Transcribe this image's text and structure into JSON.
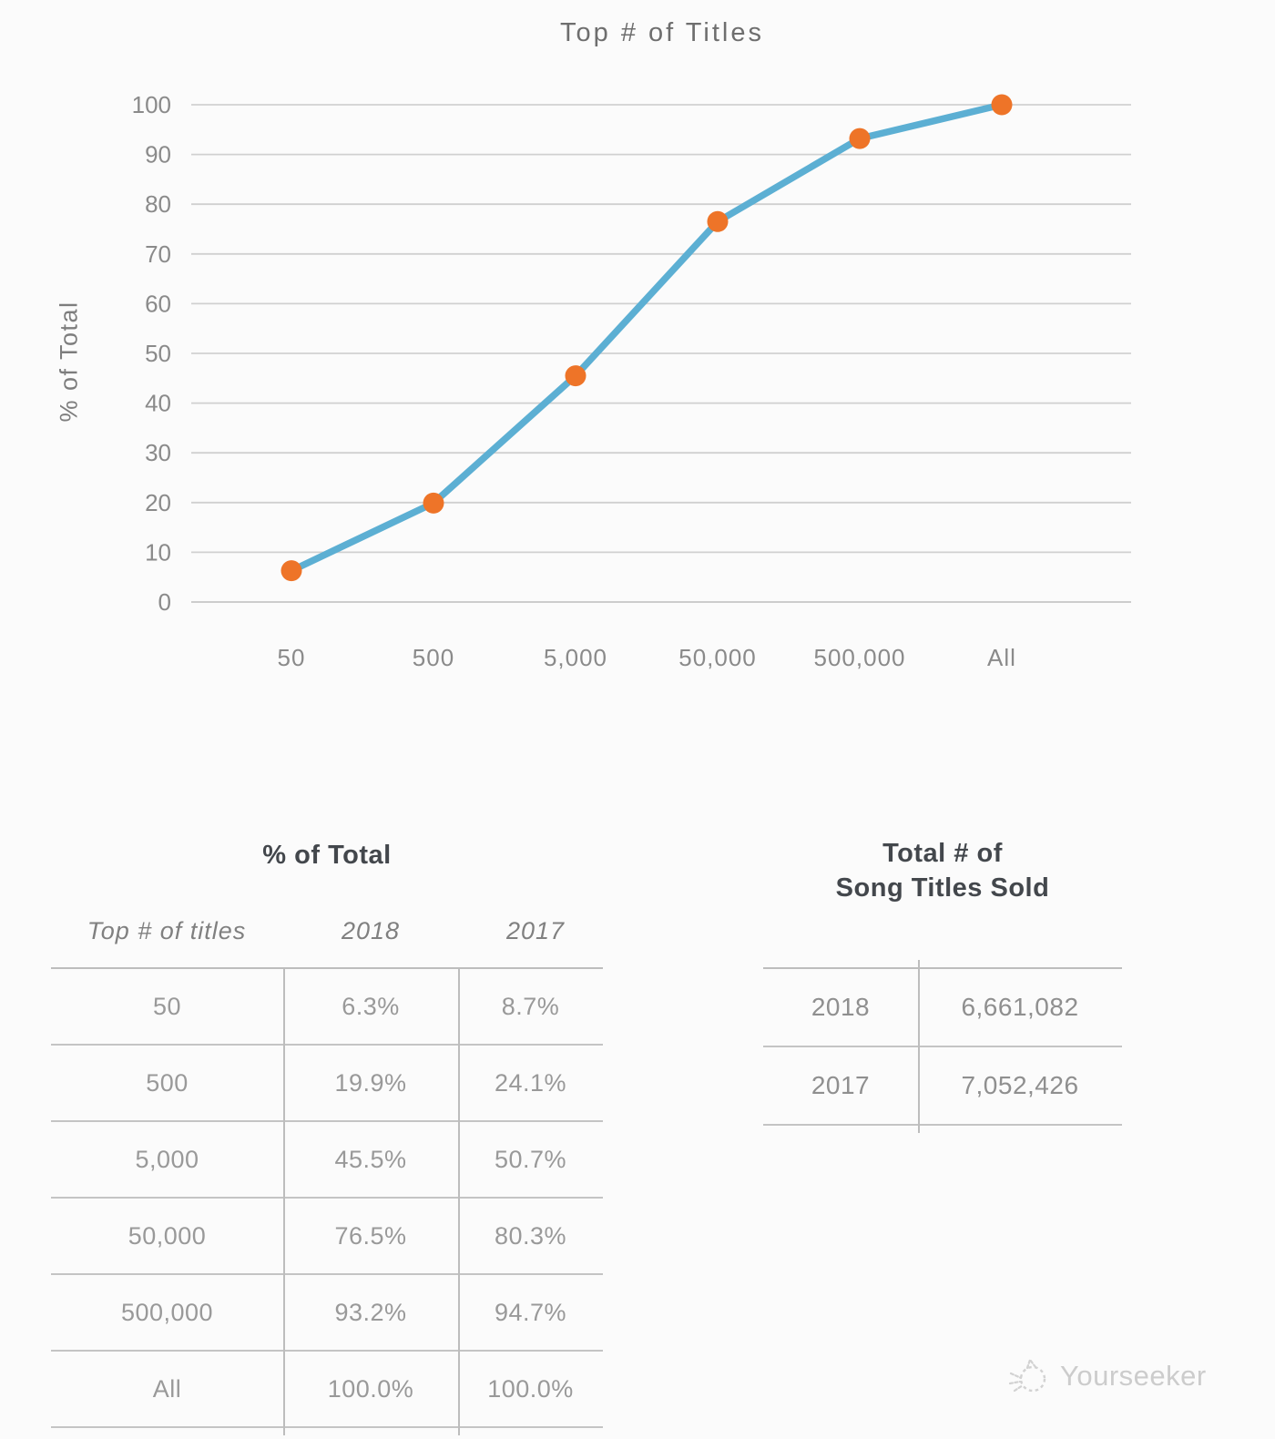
{
  "chart": {
    "title": "Top # of Titles",
    "ylabel": "% of Total"
  },
  "chart_data": {
    "type": "line",
    "title": "Top # of Titles",
    "xlabel": "",
    "ylabel": "% of Total",
    "categories": [
      "50",
      "500",
      "5,000",
      "50,000",
      "500,000",
      "All"
    ],
    "series": [
      {
        "name": "2018",
        "values": [
          6.3,
          19.9,
          45.5,
          76.5,
          93.2,
          100.0
        ]
      }
    ],
    "ylim": [
      0,
      100
    ],
    "ytick_step": 10,
    "grid": true,
    "legend": "none",
    "line_color": "#5CAFD3",
    "marker_color": "#EE7428"
  },
  "pct_table": {
    "title": "% of Total",
    "columns": [
      "Top # of titles",
      "2018",
      "2017"
    ],
    "rows": [
      {
        "label": "50",
        "y2018": "6.3%",
        "y2017": "8.7%"
      },
      {
        "label": "500",
        "y2018": "19.9%",
        "y2017": "24.1%"
      },
      {
        "label": "5,000",
        "y2018": "45.5%",
        "y2017": "50.7%"
      },
      {
        "label": "50,000",
        "y2018": "76.5%",
        "y2017": "80.3%"
      },
      {
        "label": "500,000",
        "y2018": "93.2%",
        "y2017": "94.7%"
      },
      {
        "label": "All",
        "y2018": "100.0%",
        "y2017": "100.0%"
      }
    ]
  },
  "totals_table": {
    "title_line1": "Total # of",
    "title_line2": "Song Titles Sold",
    "rows": [
      {
        "year": "2018",
        "value": "6,661,082"
      },
      {
        "year": "2017",
        "value": "7,052,426"
      }
    ]
  },
  "watermark": {
    "label": "Yourseeker",
    "icon": "doodle-logo-icon"
  },
  "colors": {
    "line": "#5CAFD3",
    "marker": "#EE7428",
    "gridline": "#d0d0d0",
    "table_line": "#c4c4c4",
    "heading_text": "#43474c",
    "muted_text": "#999999",
    "watermark_text": "#cccccc",
    "background": "#FBFBFB"
  }
}
